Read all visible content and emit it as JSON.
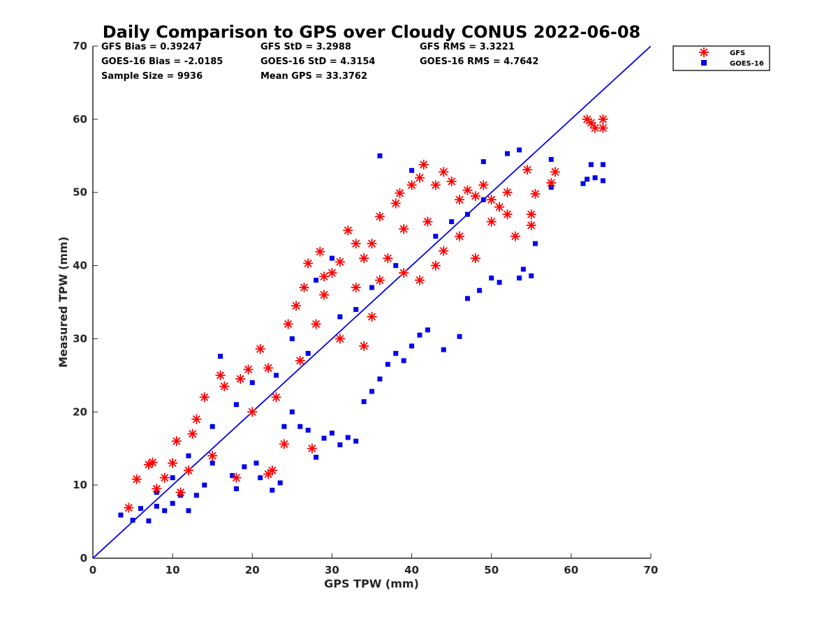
{
  "chart_data": {
    "type": "scatter",
    "title": "Daily Comparison to GPS over Cloudy CONUS 2022-06-08",
    "xlabel": "GPS TPW (mm)",
    "ylabel": "Measured TPW (mm)",
    "xlim": [
      0,
      70
    ],
    "ylim": [
      0,
      70
    ],
    "xticks": [
      "0",
      "10",
      "20",
      "30",
      "40",
      "50",
      "60",
      "70"
    ],
    "yticks": [
      "0",
      "10",
      "20",
      "30",
      "40",
      "50",
      "60",
      "70"
    ],
    "grid": false,
    "legend_position": "outside-top-right",
    "reference_line": {
      "x": [
        0,
        70
      ],
      "y": [
        0,
        70
      ],
      "color": "#0000ee"
    },
    "stats": {
      "gfs_bias": "GFS Bias = 0.39247",
      "gfs_std": "GFS StD = 3.2988",
      "gfs_rms": "GFS RMS = 3.3221",
      "goes_bias": "GOES-16 Bias = -2.0185",
      "goes_std": "GOES-16 StD = 4.3154",
      "goes_rms": "GOES-16 RMS = 4.7642",
      "sample_size": "Sample Size = 9936",
      "mean_gps": "Mean GPS = 33.3762"
    },
    "series": [
      {
        "name": "GFS",
        "marker": "asterisk",
        "color": "#ff0000",
        "points": [
          [
            4.5,
            6.9
          ],
          [
            5.5,
            10.8
          ],
          [
            7,
            12.8
          ],
          [
            7.5,
            13.1
          ],
          [
            8,
            9.5
          ],
          [
            10.5,
            16
          ],
          [
            12,
            12
          ],
          [
            14,
            22
          ],
          [
            13,
            19
          ],
          [
            16,
            25
          ],
          [
            16.5,
            23.5
          ],
          [
            18.5,
            24.5
          ],
          [
            19.5,
            25.8
          ],
          [
            21,
            28.6
          ],
          [
            22.5,
            12
          ],
          [
            22,
            11.5
          ],
          [
            24,
            15.6
          ],
          [
            24.5,
            32
          ],
          [
            25.5,
            34.5
          ],
          [
            26.5,
            37
          ],
          [
            27,
            40.3
          ],
          [
            27.5,
            15
          ],
          [
            28.5,
            41.9
          ],
          [
            29,
            38.5
          ],
          [
            30,
            39
          ],
          [
            31,
            40.5
          ],
          [
            32,
            44.8
          ],
          [
            33,
            43
          ],
          [
            34,
            41
          ],
          [
            35,
            43
          ],
          [
            36,
            46.7
          ],
          [
            38,
            48.5
          ],
          [
            38.5,
            49.9
          ],
          [
            40,
            51
          ],
          [
            41,
            52
          ],
          [
            41.5,
            53.8
          ],
          [
            43,
            51
          ],
          [
            44,
            52.8
          ],
          [
            45,
            51.5
          ],
          [
            46,
            49
          ],
          [
            47,
            50.3
          ],
          [
            48,
            49.5
          ],
          [
            49,
            51
          ],
          [
            50,
            46
          ],
          [
            51,
            48
          ],
          [
            52,
            47
          ],
          [
            53,
            44
          ],
          [
            54.5,
            53.1
          ],
          [
            55,
            47
          ],
          [
            55.5,
            49.8
          ],
          [
            55,
            45.5
          ],
          [
            57.5,
            51.3
          ],
          [
            58,
            52.8
          ],
          [
            62,
            60
          ],
          [
            62.5,
            59.5
          ],
          [
            63,
            58.8
          ],
          [
            64,
            60
          ],
          [
            64,
            58.8
          ],
          [
            9,
            11
          ],
          [
            10,
            13
          ],
          [
            11,
            9
          ],
          [
            12.5,
            17
          ],
          [
            15,
            14
          ],
          [
            18,
            11
          ],
          [
            20,
            20
          ],
          [
            22,
            26
          ],
          [
            23,
            22
          ],
          [
            26,
            27
          ],
          [
            28,
            32
          ],
          [
            29,
            36
          ],
          [
            31,
            30
          ],
          [
            33,
            37
          ],
          [
            35,
            33
          ],
          [
            37,
            41
          ],
          [
            39,
            45
          ],
          [
            42,
            46
          ],
          [
            44,
            42
          ],
          [
            46,
            44
          ],
          [
            48,
            41
          ],
          [
            50,
            49
          ],
          [
            52,
            50
          ],
          [
            36,
            38
          ],
          [
            39,
            39
          ],
          [
            41,
            38
          ],
          [
            43,
            40
          ],
          [
            34,
            29
          ]
        ]
      },
      {
        "name": "GOES-16",
        "marker": "square",
        "color": "#0000ee",
        "points": [
          [
            3.5,
            5.9
          ],
          [
            5,
            5.2
          ],
          [
            6,
            6.8
          ],
          [
            7,
            5.1
          ],
          [
            8,
            7.1
          ],
          [
            9,
            6.5
          ],
          [
            10,
            7.5
          ],
          [
            11,
            8.6
          ],
          [
            12,
            6.5
          ],
          [
            13,
            8.6
          ],
          [
            14,
            10
          ],
          [
            15,
            13
          ],
          [
            16,
            27.6
          ],
          [
            17.5,
            11.3
          ],
          [
            18,
            9.5
          ],
          [
            19,
            12.5
          ],
          [
            20.5,
            13
          ],
          [
            21,
            11
          ],
          [
            22.5,
            9.3
          ],
          [
            23.5,
            10.3
          ],
          [
            24,
            18
          ],
          [
            25,
            20
          ],
          [
            26,
            18
          ],
          [
            27,
            17.5
          ],
          [
            28,
            13.8
          ],
          [
            29,
            16.4
          ],
          [
            30,
            17.1
          ],
          [
            31,
            15.5
          ],
          [
            32,
            16.5
          ],
          [
            33,
            16
          ],
          [
            34,
            21.4
          ],
          [
            35,
            22.8
          ],
          [
            36,
            24.5
          ],
          [
            37,
            26.5
          ],
          [
            38,
            28
          ],
          [
            39,
            27
          ],
          [
            40,
            29
          ],
          [
            41,
            30.5
          ],
          [
            42,
            31.2
          ],
          [
            44,
            28.5
          ],
          [
            46,
            30.3
          ],
          [
            47,
            35.5
          ],
          [
            48.5,
            36.6
          ],
          [
            50,
            38.3
          ],
          [
            51,
            37.7
          ],
          [
            53.5,
            38.3
          ],
          [
            54,
            39.5
          ],
          [
            55,
            38.6
          ],
          [
            55.5,
            43
          ],
          [
            57.5,
            50.7
          ],
          [
            57.5,
            54.5
          ],
          [
            61.5,
            51.2
          ],
          [
            62,
            51.8
          ],
          [
            63,
            52
          ],
          [
            62.5,
            53.8
          ],
          [
            64,
            53.8
          ],
          [
            64,
            51.6
          ],
          [
            52,
            55.3
          ],
          [
            53.5,
            55.8
          ],
          [
            49,
            54.2
          ],
          [
            36,
            55
          ],
          [
            40,
            53
          ],
          [
            28,
            38
          ],
          [
            30,
            41
          ],
          [
            33,
            34
          ],
          [
            25,
            30
          ],
          [
            20,
            24
          ],
          [
            18,
            21
          ],
          [
            15,
            18
          ],
          [
            12,
            14
          ],
          [
            10,
            11
          ],
          [
            8,
            9
          ],
          [
            45,
            46
          ],
          [
            43,
            44
          ],
          [
            47,
            47
          ],
          [
            49,
            49
          ],
          [
            38,
            40
          ],
          [
            35,
            37
          ],
          [
            31,
            33
          ],
          [
            27,
            28
          ],
          [
            23,
            25
          ]
        ]
      }
    ]
  }
}
